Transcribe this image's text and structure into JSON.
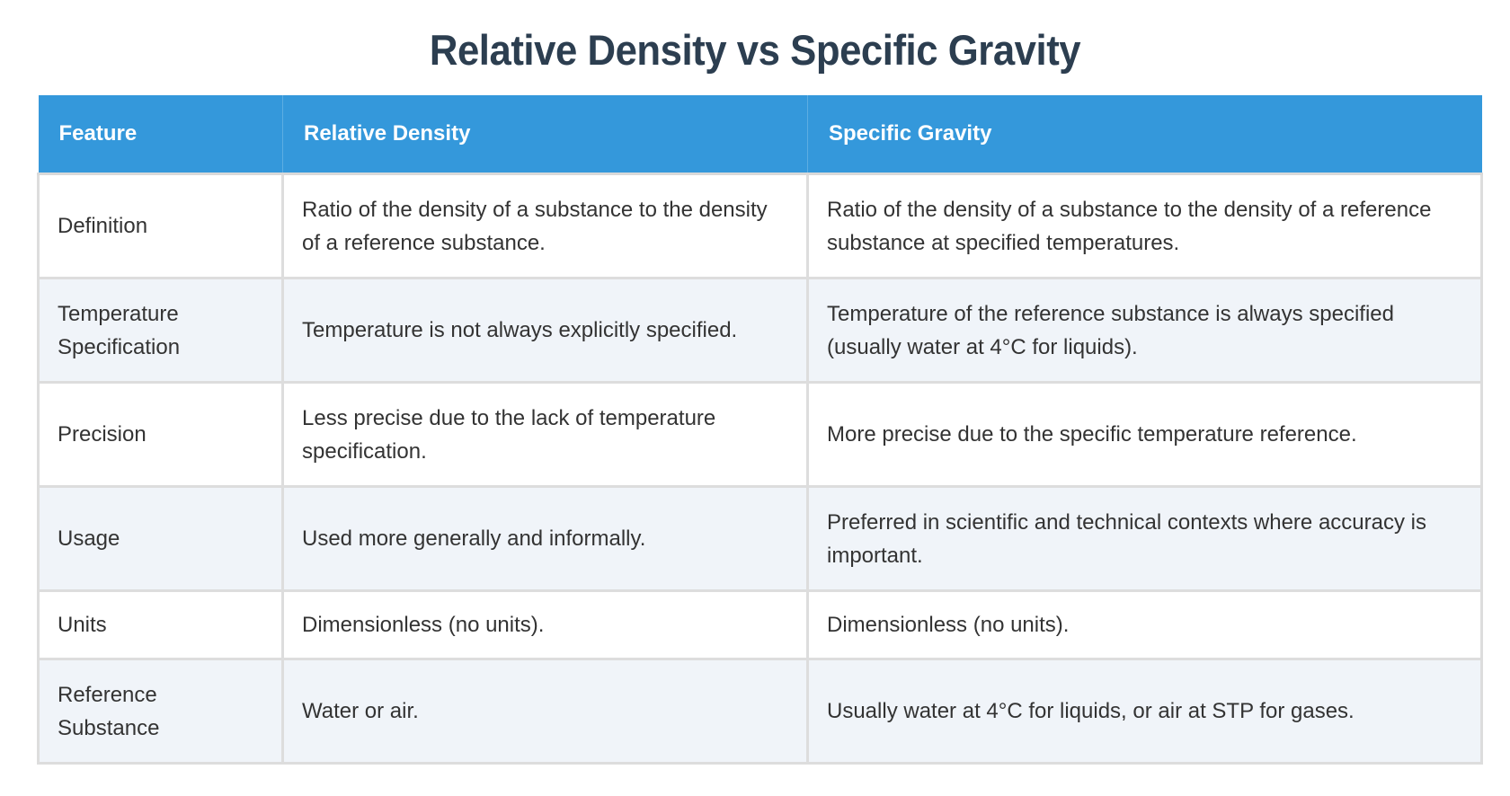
{
  "title": "Relative Density vs Specific Gravity",
  "table": {
    "headers": [
      "Feature",
      "Relative Density",
      "Specific Gravity"
    ],
    "rows": [
      {
        "feature": "Definition",
        "relative_density": "Ratio of the density of a substance to the density of a reference substance.",
        "specific_gravity": "Ratio of the density of a substance to the density of a reference substance at specified temperatures."
      },
      {
        "feature": "Temperature Specification",
        "relative_density": "Temperature is not always explicitly specified.",
        "specific_gravity": "Temperature of the reference substance is always specified (usually water at 4°C for liquids)."
      },
      {
        "feature": "Precision",
        "relative_density": "Less precise due to the lack of temperature specification.",
        "specific_gravity": "More precise due to the specific temperature reference."
      },
      {
        "feature": "Usage",
        "relative_density": "Used more generally and informally.",
        "specific_gravity": "Preferred in scientific and technical contexts where accuracy is important."
      },
      {
        "feature": "Units",
        "relative_density": "Dimensionless (no units).",
        "specific_gravity": "Dimensionless (no units)."
      },
      {
        "feature": "Reference Substance",
        "relative_density": "Water or air.",
        "specific_gravity": "Usually water at 4°C for liquids, or air at STP for gases."
      }
    ]
  },
  "colors": {
    "title": "#2c3e50",
    "header_bg": "#3498db",
    "header_text": "#ffffff",
    "row_alt_bg": "#f0f4f9",
    "border": "#dddddd",
    "body_text": "#333333"
  }
}
